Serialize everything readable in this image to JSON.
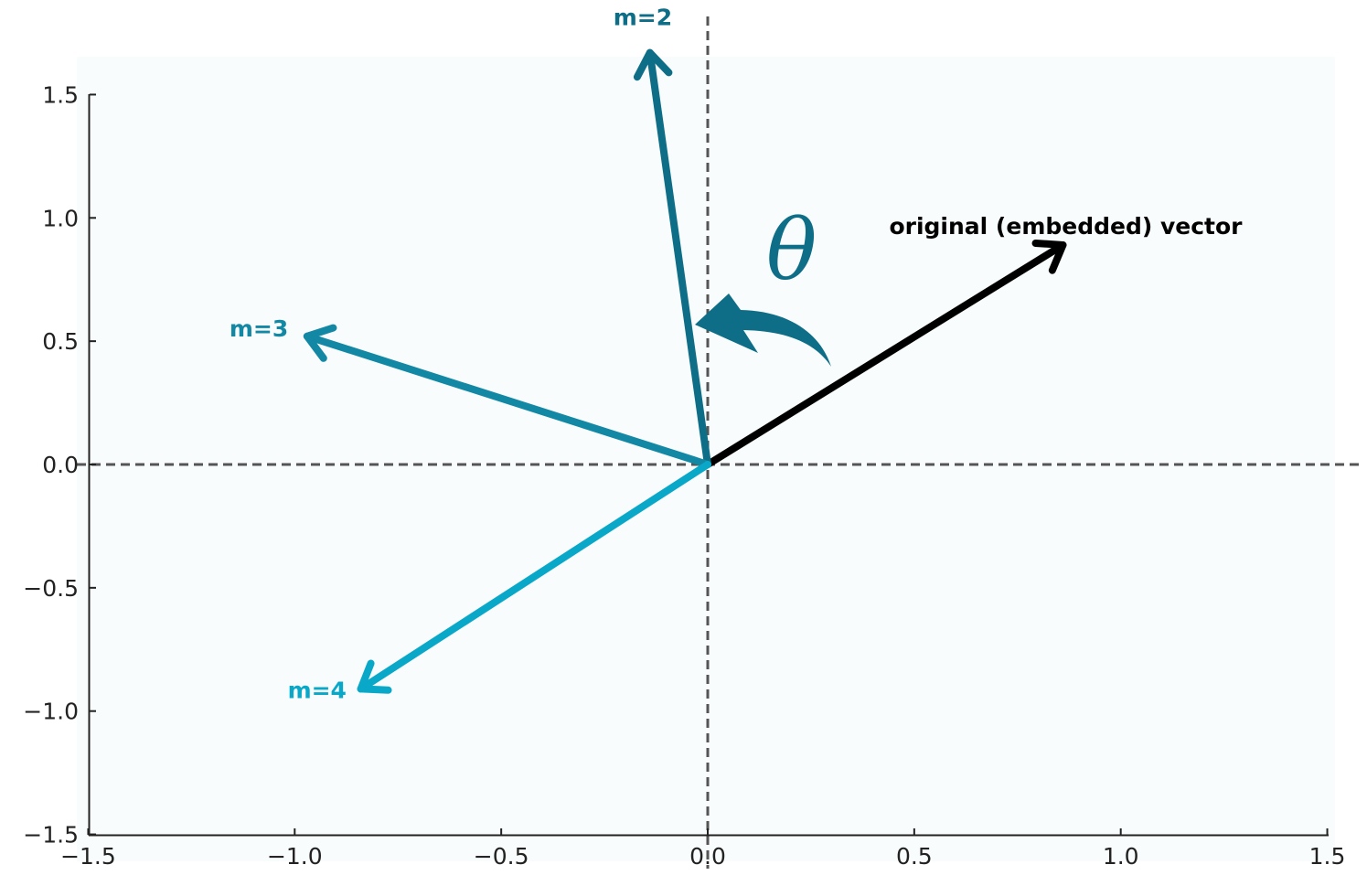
{
  "chart_data": {
    "type": "vector",
    "xlim": [
      -1.5,
      1.5
    ],
    "ylim": [
      -1.5,
      1.5
    ],
    "xticks": [
      {
        "value": -1.5,
        "label": "−1.5"
      },
      {
        "value": -1.0,
        "label": "−1.0"
      },
      {
        "value": -0.5,
        "label": "−0.5"
      },
      {
        "value": 0.0,
        "label": "0.0"
      },
      {
        "value": 0.5,
        "label": "0.5"
      },
      {
        "value": 1.0,
        "label": "1.0"
      },
      {
        "value": 1.5,
        "label": "1.5"
      }
    ],
    "yticks": [
      {
        "value": 1.5,
        "label": "1.5"
      },
      {
        "value": 1.0,
        "label": "1.0"
      },
      {
        "value": 0.5,
        "label": "0.5"
      },
      {
        "value": 0.0,
        "label": "0.0"
      },
      {
        "value": -0.5,
        "label": "−0.5"
      },
      {
        "value": -1.0,
        "label": "−1.0"
      },
      {
        "value": -1.5,
        "label": "−1.5"
      }
    ],
    "reference_lines": [
      {
        "orientation": "horizontal",
        "value": 0.0,
        "style": "dashed"
      },
      {
        "orientation": "vertical",
        "value": 0.0,
        "style": "dashed"
      }
    ],
    "vectors": [
      {
        "label": "original (embedded) vector",
        "x": 0.86,
        "y": 0.89,
        "color": "#000000"
      },
      {
        "label": "m=2",
        "x": -0.14,
        "y": 1.67,
        "color": "#0e6e87"
      },
      {
        "label": "m=3",
        "x": -0.97,
        "y": 0.52,
        "color": "#1388a5"
      },
      {
        "label": "m=4",
        "x": -0.84,
        "y": -0.91,
        "color": "#0aa8c8"
      }
    ],
    "rotation_annotation": {
      "symbol": "θ",
      "color": "#0e6e87"
    },
    "grid": false
  }
}
